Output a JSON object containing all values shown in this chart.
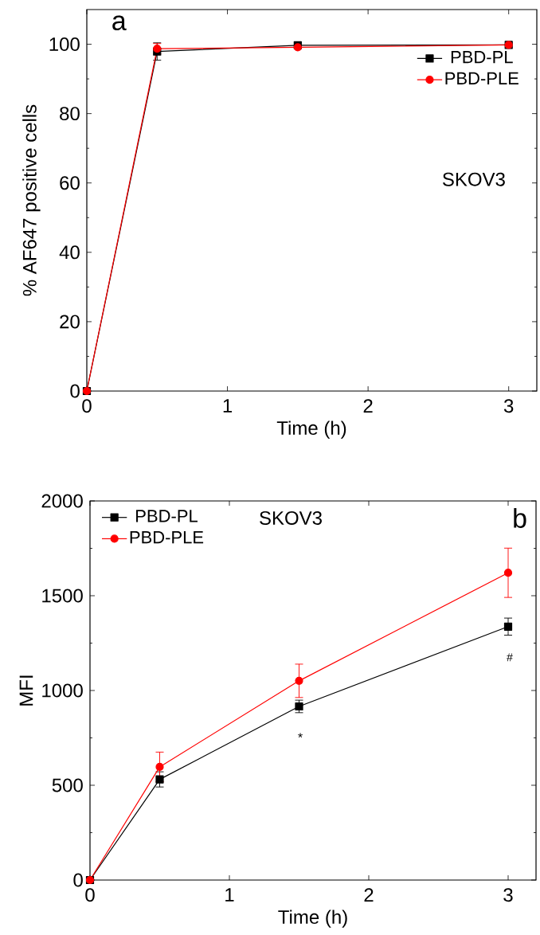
{
  "chart_data": [
    {
      "type": "line",
      "xlabel": "Time (h)",
      "ylabel": "% AF647 positive cells",
      "x": [
        0,
        0.5,
        1.5,
        3
      ],
      "xlim": [
        0,
        3.2
      ],
      "xticks": [
        0,
        1,
        2,
        3
      ],
      "ylim": [
        0,
        110
      ],
      "yticks": [
        0,
        20,
        40,
        60,
        80,
        100
      ],
      "legend": "top right",
      "annotations": [
        "a",
        "SKOV3"
      ],
      "series": [
        {
          "name": "PBD-PL",
          "color": "#000000",
          "marker": "square",
          "values": [
            0,
            97.9,
            99.7,
            99.8
          ],
          "errors": [
            null,
            2.5,
            null,
            null
          ]
        },
        {
          "name": "PBD-PLE",
          "color": "#ff0000",
          "marker": "circle",
          "values": [
            0,
            98.7,
            99.1,
            99.8
          ],
          "errors": [
            null,
            1.5,
            null,
            null
          ]
        }
      ]
    },
    {
      "type": "line",
      "xlabel": "Time (h)",
      "ylabel": "MFI",
      "x": [
        0,
        0.5,
        1.5,
        3
      ],
      "xlim": [
        0,
        3.2
      ],
      "xticks": [
        0,
        1,
        2,
        3
      ],
      "ylim": [
        0,
        2000
      ],
      "yticks": [
        0,
        500,
        1000,
        1500,
        2000
      ],
      "legend": "top left",
      "annotations": [
        "SKOV3",
        "b",
        "*",
        "#"
      ],
      "series": [
        {
          "name": "PBD-PL",
          "color": "#000000",
          "marker": "square",
          "values": [
            0,
            531,
            916,
            1337
          ],
          "errors": [
            null,
            40,
            33,
            45
          ]
        },
        {
          "name": "PBD-PLE",
          "color": "#ff0000",
          "marker": "circle",
          "values": [
            0,
            597,
            1051,
            1621
          ],
          "errors": [
            null,
            78,
            88,
            130
          ]
        }
      ]
    }
  ]
}
